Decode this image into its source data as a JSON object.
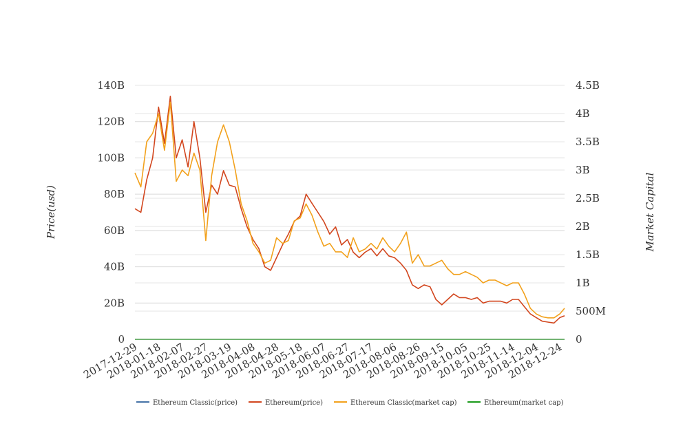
{
  "chart_data": {
    "type": "line",
    "title": "",
    "ylabel_left": "Price(usd)",
    "ylabel_right": "Market Capital",
    "left_axis": {
      "ticks": [
        0,
        20000000000,
        40000000000,
        60000000000,
        80000000000,
        100000000000,
        120000000000,
        140000000000
      ],
      "tick_labels": [
        "0",
        "20B",
        "40B",
        "60B",
        "80B",
        "100B",
        "120B",
        "140B"
      ],
      "ylim": [
        0,
        140000000000
      ]
    },
    "right_axis": {
      "ticks": [
        0,
        500000000,
        1000000000,
        1500000000,
        2000000000,
        2500000000,
        3000000000,
        3500000000,
        4000000000,
        4500000000
      ],
      "tick_labels": [
        "0",
        "500M",
        "1B",
        "1.5B",
        "2B",
        "2.5B",
        "3B",
        "3.5B",
        "4B",
        "4.5B"
      ],
      "ylim": [
        0,
        4500000000
      ]
    },
    "x_tick_labels": [
      "2017-12-29",
      "2018-01-18",
      "2018-02-07",
      "2018-02-27",
      "2018-03-19",
      "2018-04-08",
      "2018-04-28",
      "2018-05-18",
      "2018-06-07",
      "2018-06-27",
      "2018-07-17",
      "2018-08-06",
      "2018-08-26",
      "2018-09-15",
      "2018-10-05",
      "2018-10-25",
      "2018-11-14",
      "2018-12-04",
      "2018-12-24"
    ],
    "x": [
      "2017-12-29",
      "2018-01-03",
      "2018-01-08",
      "2018-01-13",
      "2018-01-18",
      "2018-01-23",
      "2018-01-28",
      "2018-02-02",
      "2018-02-07",
      "2018-02-12",
      "2018-02-17",
      "2018-02-22",
      "2018-02-27",
      "2018-03-04",
      "2018-03-09",
      "2018-03-14",
      "2018-03-19",
      "2018-03-24",
      "2018-03-29",
      "2018-04-03",
      "2018-04-08",
      "2018-04-13",
      "2018-04-18",
      "2018-04-23",
      "2018-04-28",
      "2018-05-03",
      "2018-05-08",
      "2018-05-13",
      "2018-05-18",
      "2018-05-23",
      "2018-05-28",
      "2018-06-02",
      "2018-06-07",
      "2018-06-12",
      "2018-06-17",
      "2018-06-22",
      "2018-06-27",
      "2018-07-02",
      "2018-07-07",
      "2018-07-12",
      "2018-07-17",
      "2018-07-22",
      "2018-07-27",
      "2018-08-01",
      "2018-08-06",
      "2018-08-11",
      "2018-08-16",
      "2018-08-21",
      "2018-08-26",
      "2018-08-31",
      "2018-09-05",
      "2018-09-10",
      "2018-09-15",
      "2018-09-20",
      "2018-09-25",
      "2018-09-30",
      "2018-10-05",
      "2018-10-10",
      "2018-10-15",
      "2018-10-20",
      "2018-10-25",
      "2018-10-30",
      "2018-11-04",
      "2018-11-09",
      "2018-11-14",
      "2018-11-19",
      "2018-11-24",
      "2018-11-29",
      "2018-12-04",
      "2018-12-09",
      "2018-12-14",
      "2018-12-19",
      "2018-12-24",
      "2018-12-28"
    ],
    "series": [
      {
        "name": "Ethereum Classic(price)",
        "color": "#4572a7",
        "axis": "left",
        "values": [
          0,
          0,
          0,
          0,
          0,
          0,
          0,
          0,
          0,
          0,
          0,
          0,
          0,
          0,
          0,
          0,
          0,
          0,
          0,
          0,
          0,
          0,
          0,
          0,
          0,
          0,
          0,
          0,
          0,
          0,
          0,
          0,
          0,
          0,
          0,
          0,
          0,
          0,
          0,
          0,
          0,
          0,
          0,
          0,
          0,
          0,
          0,
          0,
          0,
          0,
          0,
          0,
          0,
          0,
          0,
          0,
          0,
          0,
          0,
          0,
          0,
          0,
          0,
          0,
          0,
          0,
          0,
          0,
          0,
          0,
          0,
          0,
          0,
          0
        ]
      },
      {
        "name": "Ethereum(price)",
        "color": "#d2461e",
        "axis": "left",
        "values": [
          72000000000,
          70000000000,
          88000000000,
          100000000000,
          128000000000,
          108000000000,
          134000000000,
          100000000000,
          110000000000,
          95000000000,
          120000000000,
          100000000000,
          70000000000,
          85000000000,
          80000000000,
          93000000000,
          85000000000,
          84000000000,
          72000000000,
          62000000000,
          55000000000,
          50000000000,
          40000000000,
          38000000000,
          45000000000,
          52000000000,
          58000000000,
          65000000000,
          68000000000,
          80000000000,
          75000000000,
          70000000000,
          65000000000,
          58000000000,
          62000000000,
          52000000000,
          55000000000,
          48000000000,
          45000000000,
          48000000000,
          50000000000,
          46000000000,
          50000000000,
          46000000000,
          45000000000,
          42000000000,
          38000000000,
          30000000000,
          28000000000,
          30000000000,
          29000000000,
          22000000000,
          19000000000,
          22000000000,
          25000000000,
          23000000000,
          23000000000,
          22000000000,
          23000000000,
          20000000000,
          21000000000,
          21000000000,
          21000000000,
          20000000000,
          22000000000,
          22000000000,
          18000000000,
          14000000000,
          12000000000,
          10000000000,
          9500000000,
          9000000000,
          12000000000,
          13000000000
        ]
      },
      {
        "name": "Ethereum Classic(market cap)",
        "color": "#f2a11c",
        "axis": "right",
        "values": [
          2950000000,
          2700000000,
          3500000000,
          3650000000,
          4000000000,
          3350000000,
          4200000000,
          2800000000,
          3000000000,
          2900000000,
          3300000000,
          3000000000,
          1750000000,
          2900000000,
          3500000000,
          3800000000,
          3500000000,
          3000000000,
          2400000000,
          2100000000,
          1700000000,
          1550000000,
          1350000000,
          1400000000,
          1800000000,
          1700000000,
          1750000000,
          2100000000,
          2150000000,
          2400000000,
          2200000000,
          1900000000,
          1650000000,
          1700000000,
          1550000000,
          1550000000,
          1450000000,
          1800000000,
          1550000000,
          1600000000,
          1700000000,
          1600000000,
          1800000000,
          1650000000,
          1550000000,
          1700000000,
          1900000000,
          1350000000,
          1500000000,
          1300000000,
          1300000000,
          1350000000,
          1400000000,
          1250000000,
          1150000000,
          1150000000,
          1200000000,
          1150000000,
          1100000000,
          1000000000,
          1050000000,
          1050000000,
          1000000000,
          950000000,
          1000000000,
          1000000000,
          800000000,
          550000000,
          450000000,
          400000000,
          380000000,
          380000000,
          450000000,
          550000000
        ]
      },
      {
        "name": "Ethereum(market cap)",
        "color": "#1a9a1a",
        "axis": "right",
        "values": [
          0,
          0,
          0,
          0,
          0,
          0,
          0,
          0,
          0,
          0,
          0,
          0,
          0,
          0,
          0,
          0,
          0,
          0,
          0,
          0,
          0,
          0,
          0,
          0,
          0,
          0,
          0,
          0,
          0,
          0,
          0,
          0,
          0,
          0,
          0,
          0,
          0,
          0,
          0,
          0,
          0,
          0,
          0,
          0,
          0,
          0,
          0,
          0,
          0,
          0,
          0,
          0,
          0,
          0,
          0,
          0,
          0,
          0,
          0,
          0,
          0,
          0,
          0,
          0,
          0,
          0,
          0,
          0,
          0,
          0,
          0,
          0,
          0,
          0
        ]
      }
    ],
    "grid": true,
    "legend_position": "bottom"
  }
}
